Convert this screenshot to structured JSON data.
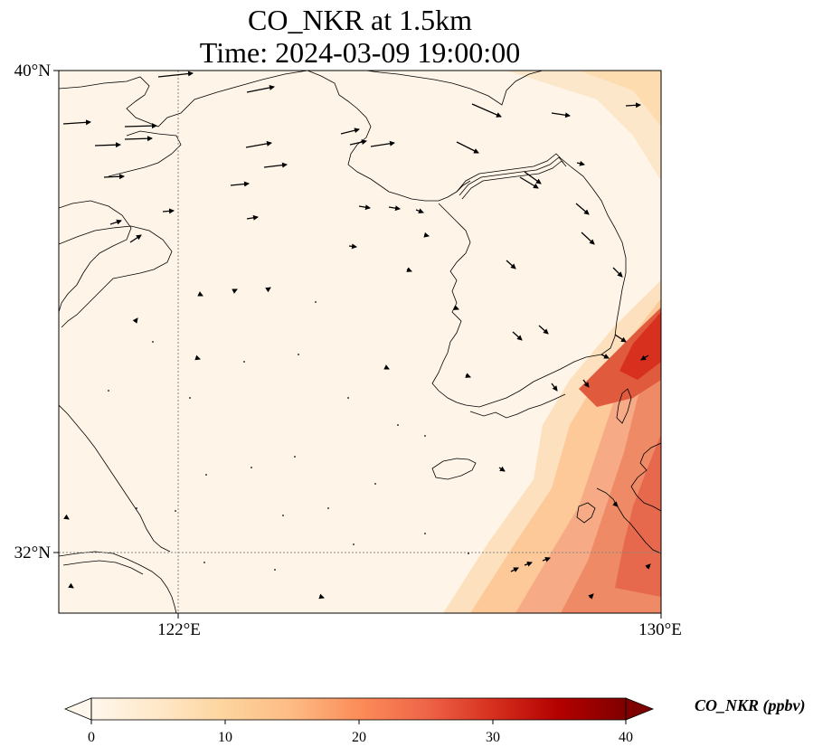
{
  "title": "CO_NKR at 1.5km",
  "time_label": "Time: 2024-03-09 19:00:00",
  "axes": {
    "lat_ticks": [
      "40°N",
      "32°N"
    ],
    "lon_ticks": [
      "122°E",
      "130°E"
    ]
  },
  "colorbar": {
    "label": "CO_NKR (ppbv)",
    "ticks": [
      "0",
      "10",
      "20",
      "30",
      "40"
    ],
    "colormap": [
      "#fff7ec",
      "#fee8c8",
      "#fdd49e",
      "#fdbb84",
      "#fc8d59",
      "#ef6548",
      "#d7301f",
      "#b30000",
      "#7f0000"
    ],
    "extend": "both"
  },
  "colors": {
    "background_field": "#fef5e8",
    "coastline": "#000000",
    "gridline": "#888888",
    "plume_low": "#fdd49e",
    "plume_mid": "#f3a07a",
    "plume_high": "#d7301f"
  }
}
